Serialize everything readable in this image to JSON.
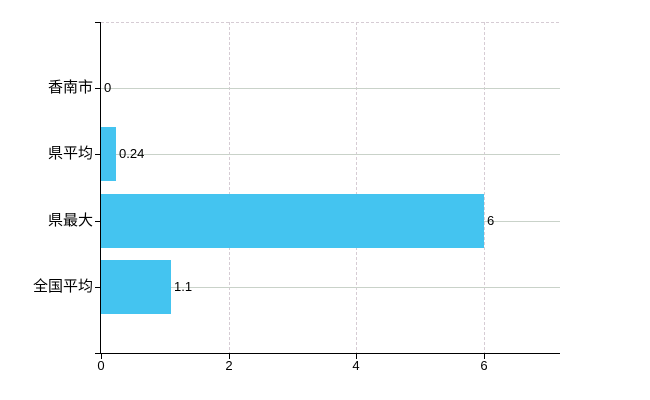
{
  "chart_data": {
    "type": "bar",
    "orientation": "horizontal",
    "title": "",
    "xlabel": "",
    "ylabel": "",
    "categories": [
      "香南市",
      "県平均",
      "県最大",
      "全国平均"
    ],
    "values": [
      0,
      0.24,
      6,
      1.1
    ],
    "value_labels": [
      "0",
      "0.24",
      "6",
      "1.1"
    ],
    "x_ticks": [
      0,
      2,
      4,
      6
    ],
    "x_tick_labels": [
      "0",
      "2",
      "4",
      "6"
    ],
    "xlim": [
      0,
      7.2
    ],
    "grid": true,
    "legend": false,
    "colors": {
      "bar": "#44C4F0",
      "h_gridline": "#C9D2C9",
      "v_gridline": "#D6CCD4",
      "axis": "#000000",
      "text": "#000000",
      "background": "#FFFFFF"
    }
  }
}
